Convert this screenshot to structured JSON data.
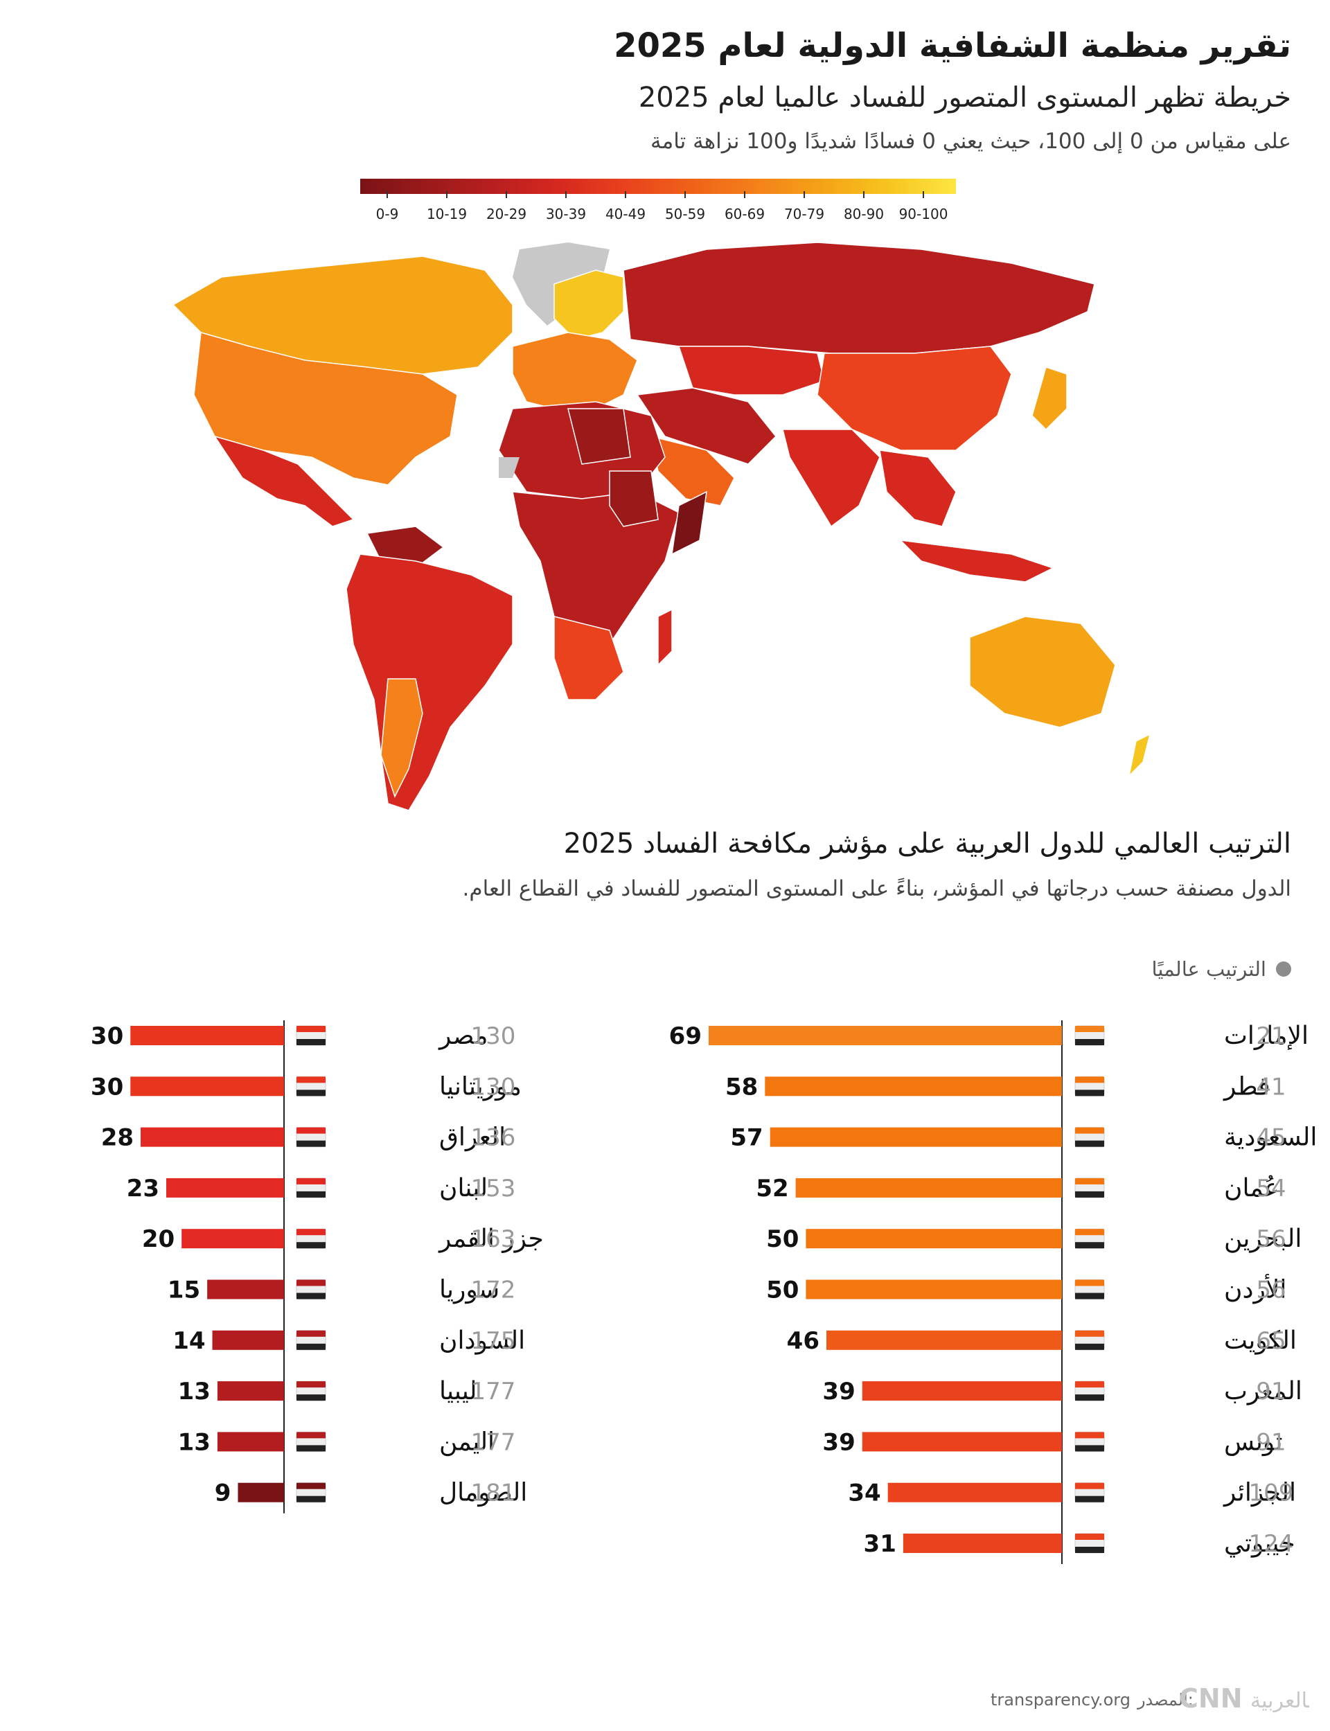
{
  "header": {
    "title": "تقرير منظمة الشفافية الدولية لعام 2025",
    "subtitle": "خريطة تظهر المستوى المتصور للفساد عالميا لعام 2025",
    "note": "على مقياس من 0 إلى 100، حيث يعني 0 فسادًا شديدًا و100 نزاهة تامة"
  },
  "legend": {
    "bins": [
      "0-9",
      "10-19",
      "20-29",
      "30-39",
      "40-49",
      "50-59",
      "60-69",
      "70-79",
      "80-90",
      "90-100"
    ],
    "colors": [
      "#7a1316",
      "#9a1a1a",
      "#b71f1f",
      "#d6281f",
      "#e9421d",
      "#ef6218",
      "#f4811a",
      "#f5a416",
      "#f7c51f",
      "#fde642"
    ]
  },
  "map": {
    "no_data_color": "#c8c8c8"
  },
  "ranking": {
    "title": "الترتيب العالمي للدول العربية على مؤشر مكافحة الفساد 2025",
    "subtitle": "الدول مصنفة حسب درجاتها في المؤشر، بناءً على المستوى المتصور للفساد في القطاع العام.",
    "key_label": "الترتيب عالميًا"
  },
  "chart_data": {
    "type": "bar",
    "title": "الترتيب العالمي للدول العربية على مؤشر مكافحة الفساد 2025",
    "xlim": [
      0,
      100
    ],
    "columns": [
      {
        "rows": [
          {
            "country": "الإمارات",
            "rank": 21,
            "score": 69,
            "flag": "uae-flag",
            "color": "#f4811a"
          },
          {
            "country": "قطر",
            "rank": 41,
            "score": 58,
            "flag": "qatar-flag",
            "color": "#f4760f"
          },
          {
            "country": "السعودية",
            "rank": 45,
            "score": 57,
            "flag": "saudi-flag",
            "color": "#f4760f"
          },
          {
            "country": "عُمان",
            "rank": 54,
            "score": 52,
            "flag": "oman-flag",
            "color": "#f4760f"
          },
          {
            "country": "البحرين",
            "rank": 56,
            "score": 50,
            "flag": "bahrain-flag",
            "color": "#f4760f"
          },
          {
            "country": "الأردن",
            "rank": 56,
            "score": 50,
            "flag": "jordan-flag",
            "color": "#f4760f"
          },
          {
            "country": "الكويت",
            "rank": 65,
            "score": 46,
            "flag": "kuwait-flag",
            "color": "#f05a18"
          },
          {
            "country": "المغرب",
            "rank": 91,
            "score": 39,
            "flag": "morocco-flag",
            "color": "#e9421d"
          },
          {
            "country": "تونس",
            "rank": 91,
            "score": 39,
            "flag": "tunisia-flag",
            "color": "#e9421d"
          },
          {
            "country": "الجزائر",
            "rank": 109,
            "score": 34,
            "flag": "algeria-flag",
            "color": "#e9421d"
          },
          {
            "country": "جيبوتي",
            "rank": 124,
            "score": 31,
            "flag": "djibouti-flag",
            "color": "#e9421d"
          }
        ]
      },
      {
        "rows": [
          {
            "country": "مصر",
            "rank": 130,
            "score": 30,
            "flag": "egypt-flag",
            "color": "#e8361e"
          },
          {
            "country": "موريتانيا",
            "rank": 130,
            "score": 30,
            "flag": "mauritania-flag",
            "color": "#e8361e"
          },
          {
            "country": "العراق",
            "rank": 136,
            "score": 28,
            "flag": "iraq-flag",
            "color": "#e22a22"
          },
          {
            "country": "لبنان",
            "rank": 153,
            "score": 23,
            "flag": "lebanon-flag",
            "color": "#e22a22"
          },
          {
            "country": "جزر القمر",
            "rank": 163,
            "score": 20,
            "flag": "comoros-flag",
            "color": "#e22a22"
          },
          {
            "country": "سوريا",
            "rank": 172,
            "score": 15,
            "flag": "syria-flag",
            "color": "#b31d1f"
          },
          {
            "country": "السودان",
            "rank": 175,
            "score": 14,
            "flag": "sudan-flag",
            "color": "#b31d1f"
          },
          {
            "country": "ليبيا",
            "rank": 177,
            "score": 13,
            "flag": "libya-flag",
            "color": "#b31d1f"
          },
          {
            "country": "اليمن",
            "rank": 177,
            "score": 13,
            "flag": "yemen-flag",
            "color": "#b31d1f"
          },
          {
            "country": "الصومال",
            "rank": 181,
            "score": 9,
            "flag": "somalia-flag",
            "color": "#7a1316"
          }
        ]
      }
    ]
  },
  "footer": {
    "source_label": "المصدر:",
    "source_value": "transparency.org"
  }
}
